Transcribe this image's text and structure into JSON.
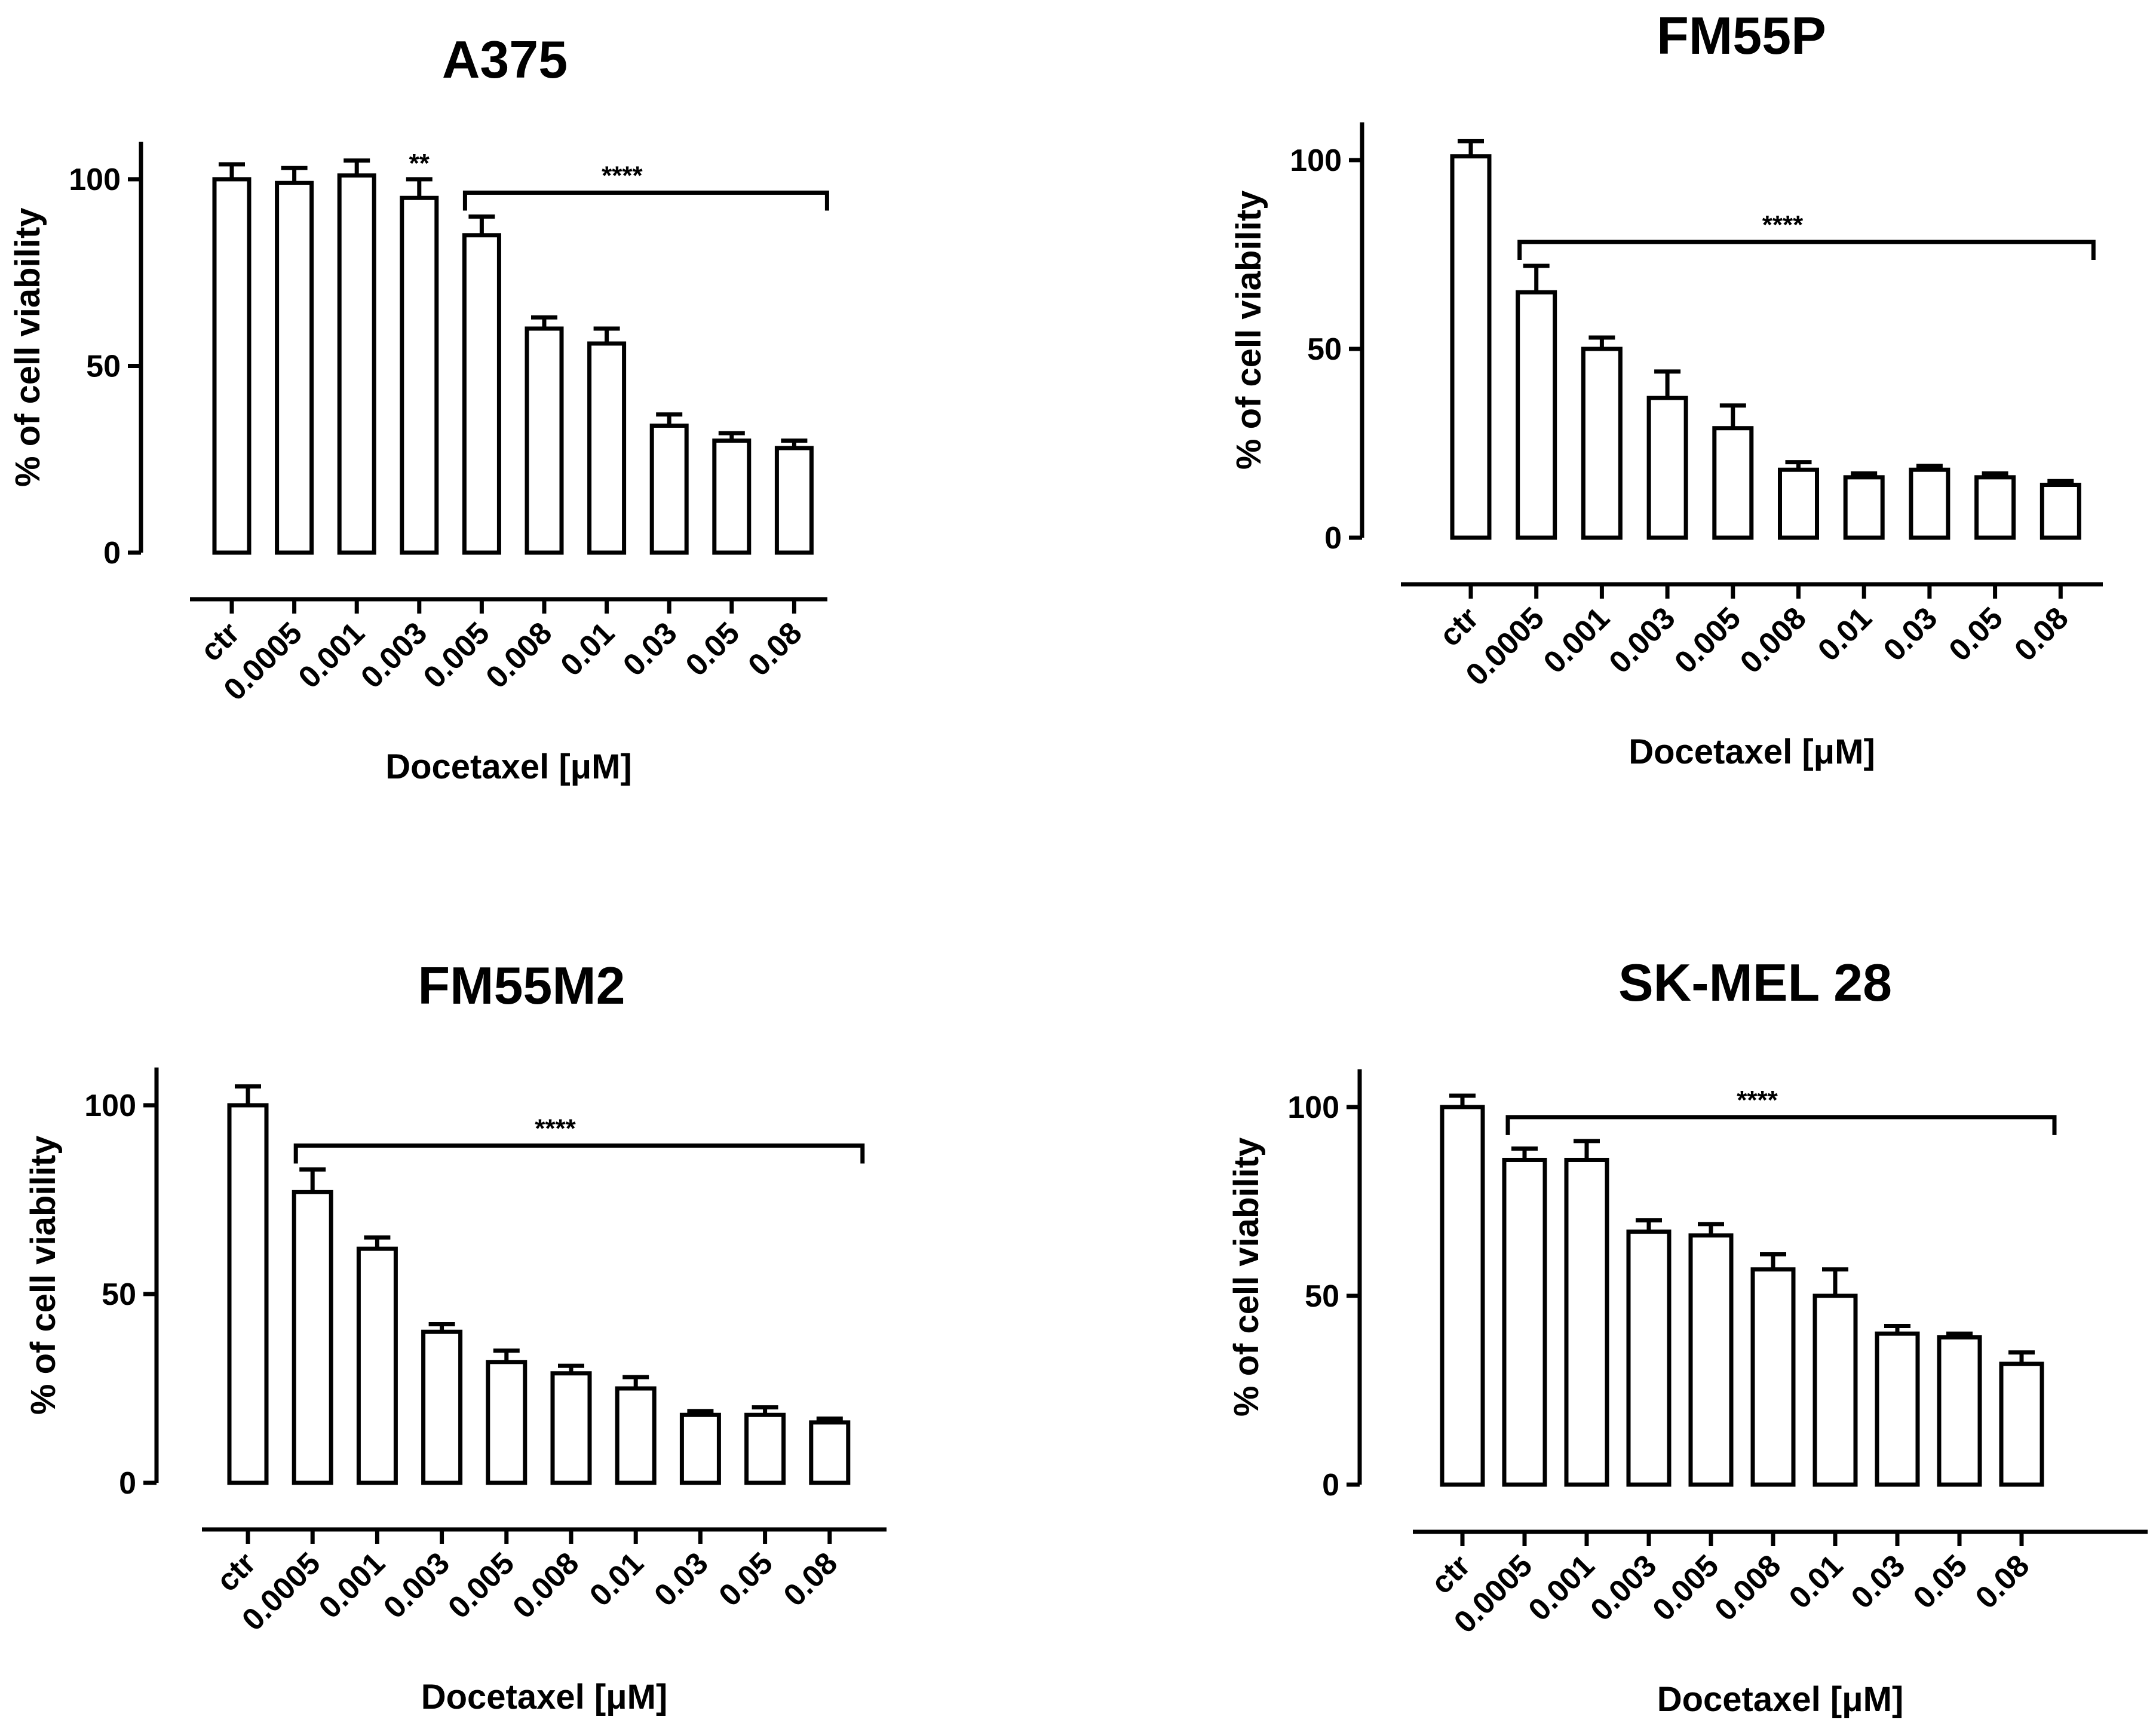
{
  "chart_data": [
    {
      "type": "bar",
      "title": "A375",
      "xlabel": "Docetaxel [μM]",
      "ylabel": "% of cell viability",
      "categories": [
        "ctr",
        "0.0005",
        "0.001",
        "0.003",
        "0.005",
        "0.008",
        "0.01",
        "0.03",
        "0.05",
        "0.08"
      ],
      "values": [
        100,
        99,
        101,
        95,
        85,
        60,
        56,
        34,
        30,
        28
      ],
      "errors": [
        4,
        4,
        4,
        5,
        5,
        3,
        4,
        3,
        2,
        2
      ],
      "ylim": [
        0,
        110
      ],
      "yticks": [
        0,
        50,
        100
      ],
      "significance": [
        {
          "label": "**",
          "from": 3,
          "to": 3
        },
        {
          "label": "****",
          "from": 4,
          "to": 9
        }
      ]
    },
    {
      "type": "bar",
      "title": "FM55P",
      "xlabel": "Docetaxel [μM]",
      "ylabel": "% of cell viability",
      "categories": [
        "ctr",
        "0.0005",
        "0.001",
        "0.003",
        "0.005",
        "0.008",
        "0.01",
        "0.03",
        "0.05",
        "0.08"
      ],
      "values": [
        101,
        65,
        50,
        37,
        29,
        18,
        16,
        18,
        16,
        14
      ],
      "errors": [
        4,
        7,
        3,
        7,
        6,
        2,
        1,
        1,
        1,
        1
      ],
      "ylim": [
        0,
        110
      ],
      "yticks": [
        0,
        50,
        100
      ],
      "significance": [
        {
          "label": "****",
          "from": 1,
          "to": 9
        }
      ]
    },
    {
      "type": "bar",
      "title": "FM55M2",
      "xlabel": "Docetaxel [μM]",
      "ylabel": "% of cell viability",
      "categories": [
        "ctr",
        "0.0005",
        "0.001",
        "0.003",
        "0.005",
        "0.008",
        "0.01",
        "0.03",
        "0.05",
        "0.08"
      ],
      "values": [
        100,
        77,
        62,
        40,
        32,
        29,
        25,
        18,
        18,
        16
      ],
      "errors": [
        5,
        6,
        3,
        2,
        3,
        2,
        3,
        1,
        2,
        1
      ],
      "ylim": [
        0,
        110
      ],
      "yticks": [
        0,
        50,
        100
      ],
      "significance": [
        {
          "label": "****",
          "from": 1,
          "to": 9
        }
      ]
    },
    {
      "type": "bar",
      "title": "SK-MEL 28",
      "xlabel": "Docetaxel [μM]",
      "ylabel": "% of cell viability",
      "categories": [
        "ctr",
        "0.0005",
        "0.001",
        "0.003",
        "0.005",
        "0.008",
        "0.01",
        "0.03",
        "0.05",
        "0.08"
      ],
      "values": [
        100,
        86,
        86,
        67,
        66,
        57,
        50,
        40,
        39,
        32
      ],
      "errors": [
        3,
        3,
        5,
        3,
        3,
        4,
        7,
        2,
        1,
        3
      ],
      "ylim": [
        0,
        110
      ],
      "yticks": [
        0,
        50,
        100
      ],
      "significance": [
        {
          "label": "****",
          "from": 1,
          "to": 9
        }
      ]
    }
  ]
}
